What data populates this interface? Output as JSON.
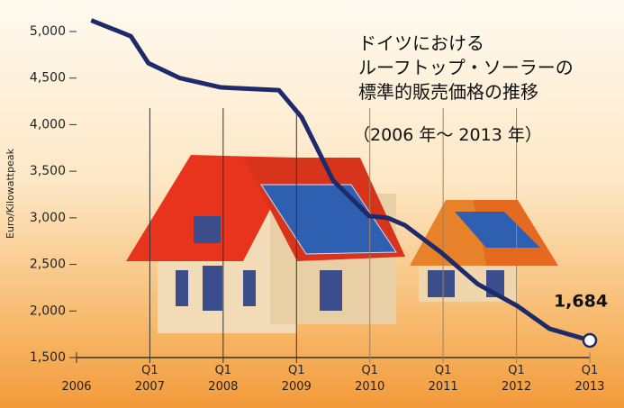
{
  "chart_data": {
    "type": "line",
    "title": "ドイツにおける\nルーフトップ・ソーラーの\n標準的販売価格の推移",
    "subtitle": "（2006 年～ 2013 年）",
    "y_label": "Euro/Kilowattpeak",
    "x": [
      2006.2,
      2006.74,
      2006.98,
      2007.41,
      2007.97,
      2008.76,
      2009.07,
      2009.5,
      2009.99,
      2010.24,
      2010.48,
      2010.97,
      2011.47,
      2012.02,
      2012.45,
      2013
    ],
    "series": [
      {
        "color": "#1f2a6b",
        "values": [
          5120,
          4950,
          4660,
          4500,
          4400,
          4370,
          4080,
          3400,
          3020,
          3000,
          2920,
          2630,
          2290,
          2050,
          1810,
          1684
        ],
        "value_labels": [
          null,
          null,
          null,
          null,
          null,
          null,
          null,
          null,
          null,
          null,
          null,
          null,
          null,
          null,
          null,
          "1,684"
        ]
      }
    ],
    "xlim": [
      2006,
      2013
    ],
    "xticks": [
      2006,
      {
        "value": 2007,
        "label": "Q1\n2007"
      },
      {
        "value": 2008,
        "label": "Q1\n2008"
      },
      {
        "value": 2009,
        "label": "Q1\n2009"
      },
      {
        "value": 2010,
        "label": "Q1\n2010"
      },
      {
        "value": 2011,
        "label": "Q1\n2011"
      },
      {
        "value": 2012,
        "label": "Q1\n2012"
      },
      {
        "value": 2013,
        "label": "Q1\n2013"
      }
    ],
    "ylim": [
      1500,
      5200
    ],
    "yticks": [
      {
        "value": 1500,
        "label": "1,500"
      },
      {
        "value": 2000,
        "label": "2,000"
      },
      {
        "value": 2500,
        "label": "2,500"
      },
      {
        "value": 3000,
        "label": "3,000"
      },
      {
        "value": 3500,
        "label": "3,500"
      },
      {
        "value": 4000,
        "label": "4,000"
      },
      {
        "value": 4500,
        "label": "4,500"
      },
      {
        "value": 5000,
        "label": "5,000"
      }
    ]
  }
}
